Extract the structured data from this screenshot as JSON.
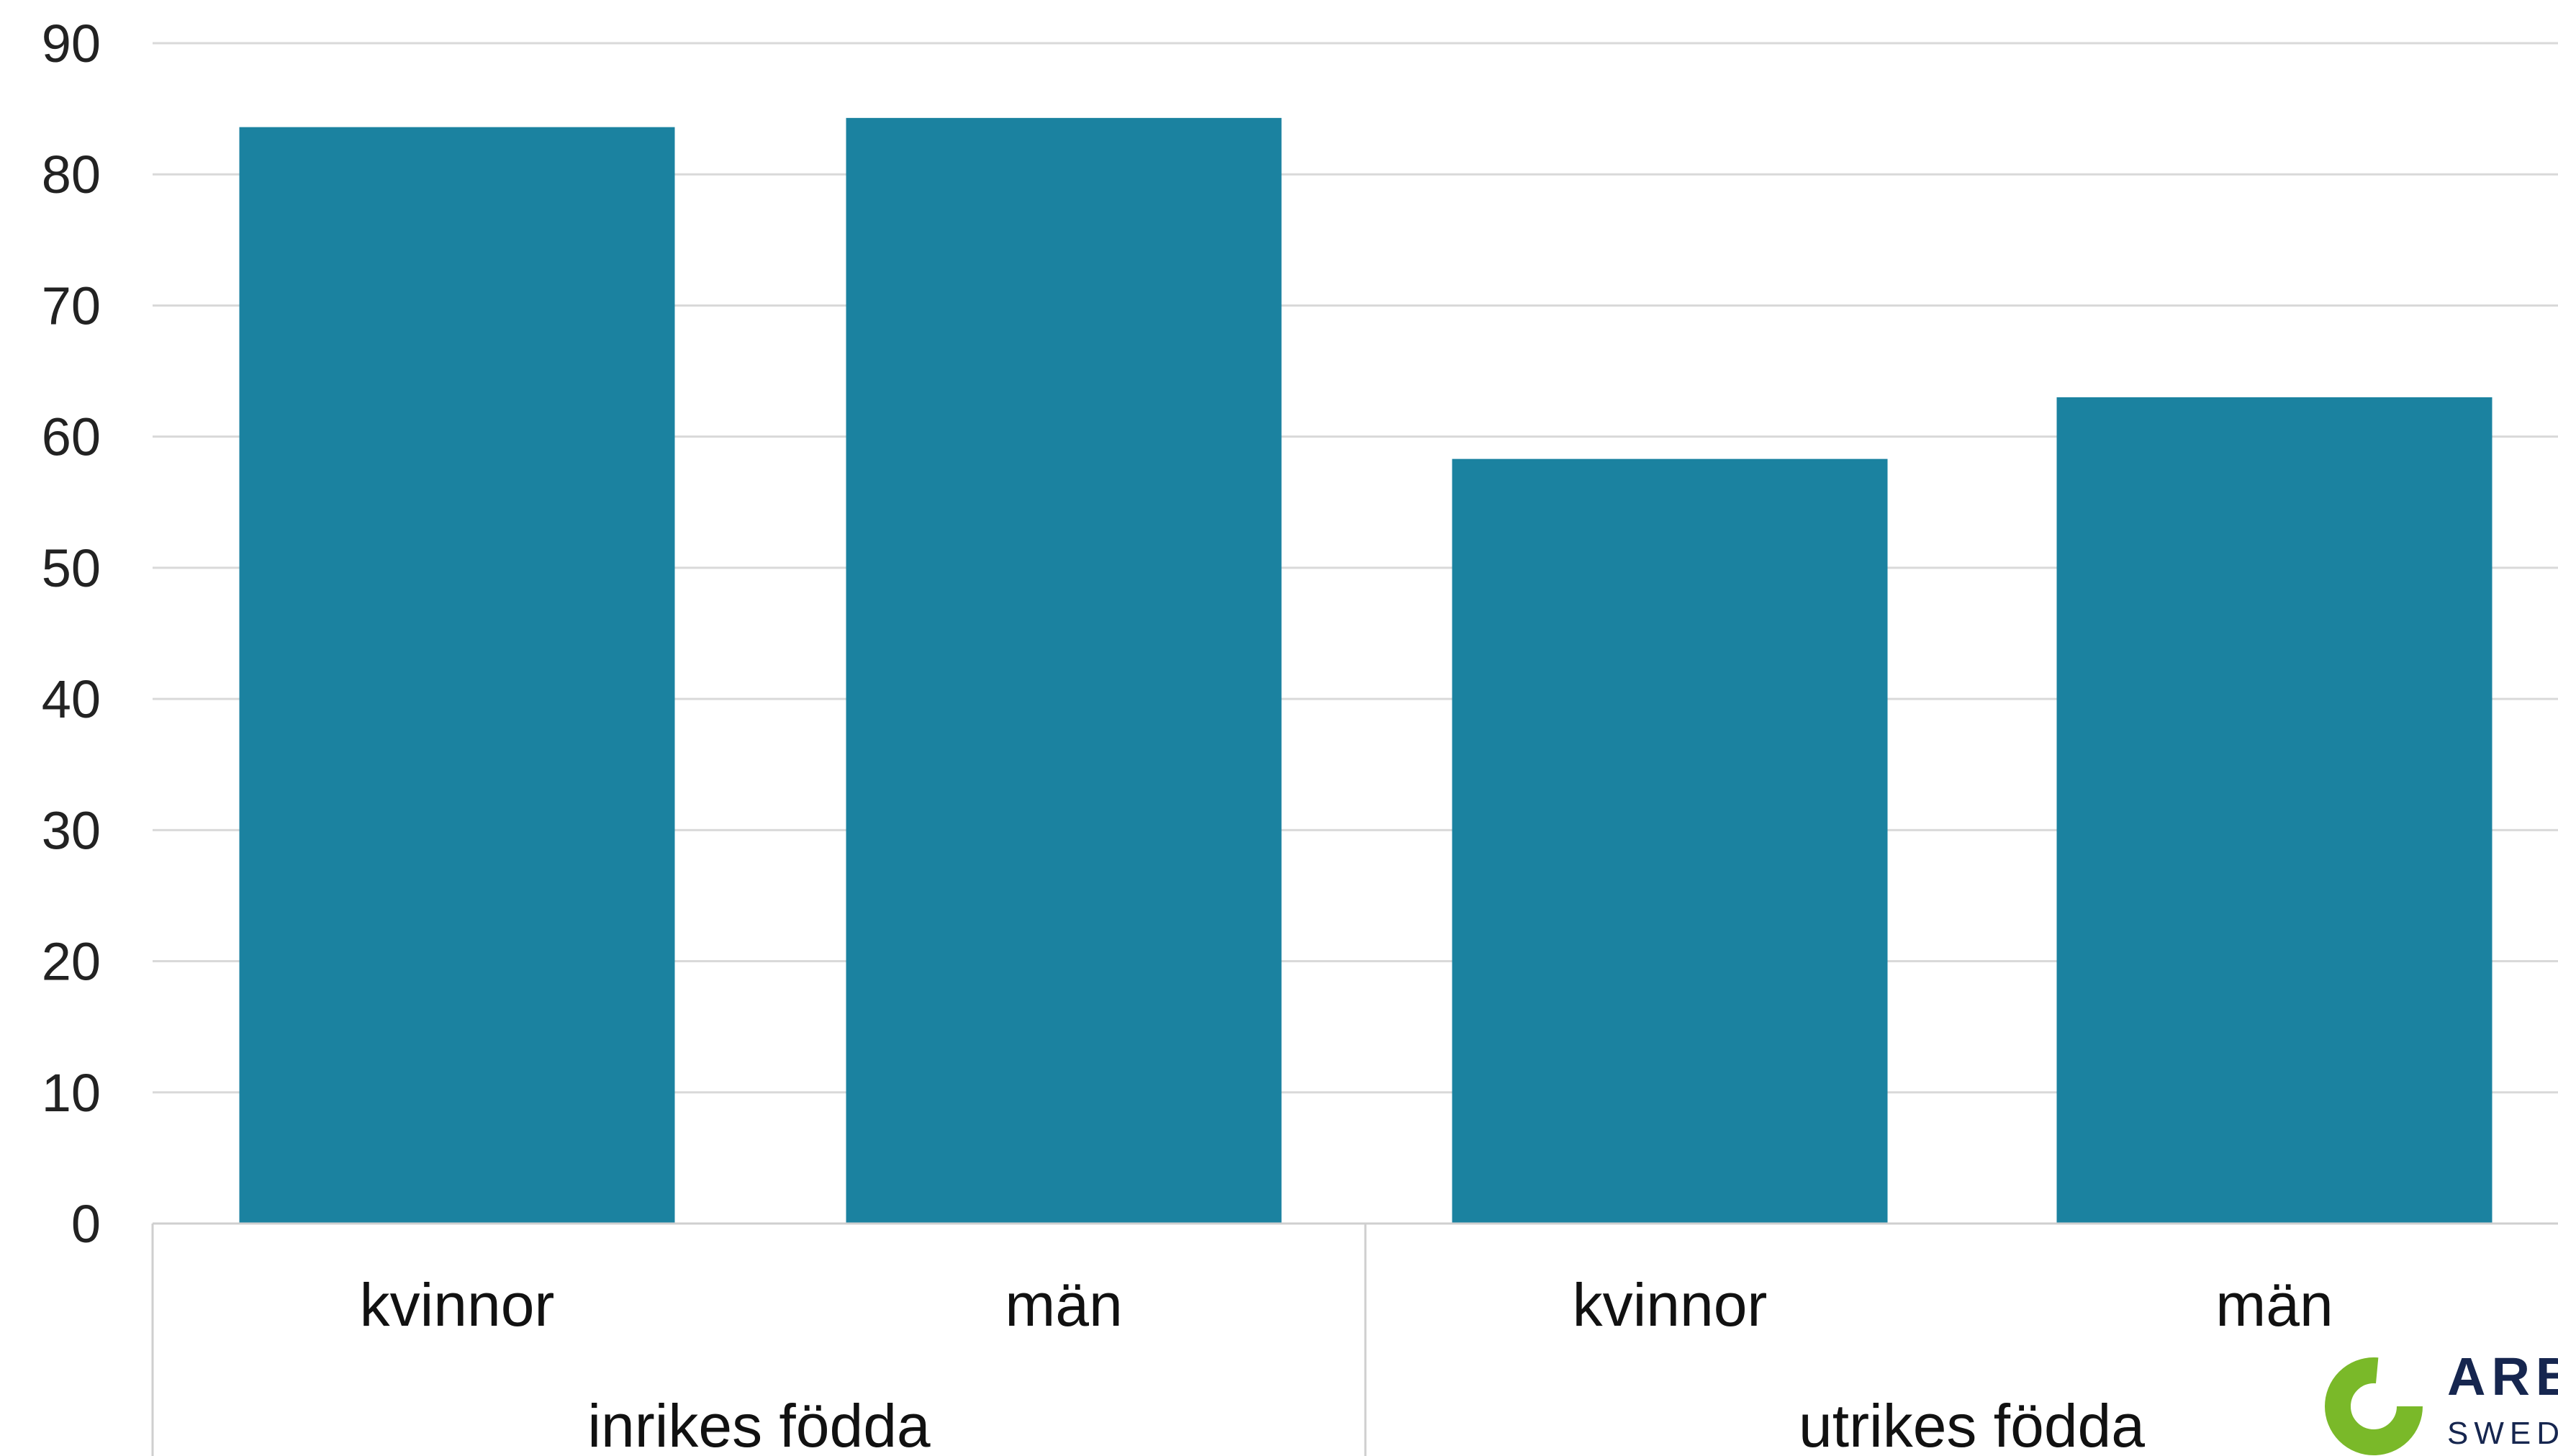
{
  "chart_data": {
    "type": "bar",
    "title": "",
    "xlabel": "",
    "ylabel": "",
    "ylim": [
      0,
      90
    ],
    "yticks": [
      0,
      10,
      20,
      30,
      40,
      50,
      60,
      70,
      80,
      90
    ],
    "grid": true,
    "bar_color": "#1b82a0",
    "groups": [
      {
        "label": "inrikes födda",
        "categories": [
          "kvinnor",
          "män"
        ],
        "values": [
          83.6,
          84.3
        ]
      },
      {
        "label": "utrikes födda",
        "categories": [
          "kvinnor",
          "män"
        ],
        "values": [
          58.3,
          63.0
        ]
      }
    ]
  },
  "logo": {
    "text": "ARB",
    "subtext": "SWEDIS",
    "color": "#16264f",
    "accent": "#7ab929"
  }
}
